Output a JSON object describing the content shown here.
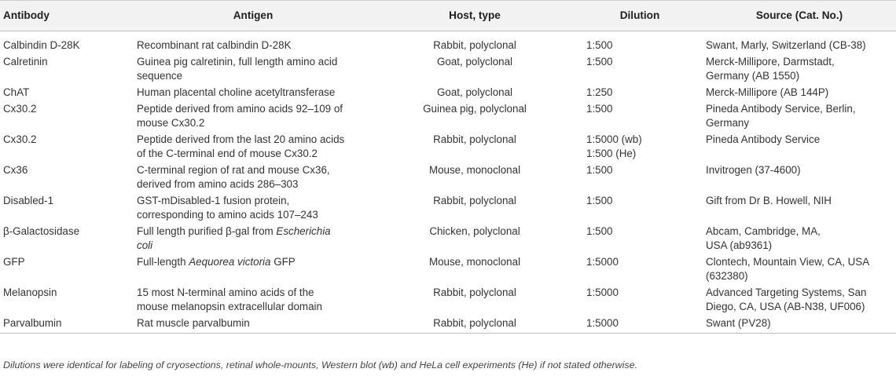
{
  "table": {
    "headers": [
      "Antibody",
      "Antigen",
      "Host, type",
      "Dilution",
      "Source (Cat. No.)"
    ],
    "rows": [
      {
        "antibody": [
          "Calbindin D-28K"
        ],
        "antigen": [
          [
            {
              "t": "Recombinant rat calbindin D-28K"
            }
          ]
        ],
        "host": [
          "Rabbit, polyclonal"
        ],
        "dilution": [
          "1:500"
        ],
        "source": [
          "Swant, Marly, Switzerland (CB-38)"
        ]
      },
      {
        "antibody": [
          "Calretinin"
        ],
        "antigen": [
          [
            {
              "t": "Guinea pig calretinin, full length amino acid"
            }
          ],
          [
            {
              "t": "sequence"
            }
          ]
        ],
        "host": [
          "Goat, polyclonal"
        ],
        "dilution": [
          "1:500"
        ],
        "source": [
          "Merck-Millipore, Darmstadt,",
          "Germany (AB 1550)"
        ]
      },
      {
        "antibody": [
          "ChAT"
        ],
        "antigen": [
          [
            {
              "t": "Human placental choline acetyltransferase"
            }
          ]
        ],
        "host": [
          "Goat, polyclonal"
        ],
        "dilution": [
          "1:250"
        ],
        "source": [
          "Merck-Millipore (AB 144P)"
        ]
      },
      {
        "antibody": [
          "Cx30.2"
        ],
        "antigen": [
          [
            {
              "t": "Peptide derived from amino acids 92–109 of"
            }
          ],
          [
            {
              "t": "mouse Cx30.2"
            }
          ]
        ],
        "host": [
          "Guinea pig, polyclonal"
        ],
        "dilution": [
          "1:500"
        ],
        "source": [
          "Pineda Antibody Service, Berlin,",
          "Germany"
        ]
      },
      {
        "antibody": [
          "Cx30.2"
        ],
        "antigen": [
          [
            {
              "t": "Peptide derived from the last 20 amino acids"
            }
          ],
          [
            {
              "t": "of the C-terminal end of mouse Cx30.2"
            }
          ]
        ],
        "host": [
          "Rabbit, polyclonal"
        ],
        "dilution": [
          "1:5000 (wb)",
          "1:500 (He)"
        ],
        "source": [
          "Pineda Antibody Service"
        ]
      },
      {
        "antibody": [
          "Cx36"
        ],
        "antigen": [
          [
            {
              "t": "C-terminal region of rat and mouse Cx36,"
            }
          ],
          [
            {
              "t": "derived from amino acids 286–303"
            }
          ]
        ],
        "host": [
          "Mouse, monoclonal"
        ],
        "dilution": [
          "1:500"
        ],
        "source": [
          "Invitrogen (37-4600)"
        ]
      },
      {
        "antibody": [
          "Disabled-1"
        ],
        "antigen": [
          [
            {
              "t": "GST-mDisabled-1 fusion protein,"
            }
          ],
          [
            {
              "t": "corresponding to amino acids 107–243"
            }
          ]
        ],
        "host": [
          "Rabbit, polyclonal"
        ],
        "dilution": [
          "1:500"
        ],
        "source": [
          "Gift from Dr B. Howell, NIH"
        ]
      },
      {
        "antibody": [
          "β-Galactosidase"
        ],
        "antigen": [
          [
            {
              "t": "Full length purified β-gal from "
            },
            {
              "t": "Escherichia",
              "i": true
            }
          ],
          [
            {
              "t": "coli",
              "i": true
            }
          ]
        ],
        "host": [
          "Chicken, polyclonal"
        ],
        "dilution": [
          "1:500"
        ],
        "source": [
          "Abcam, Cambridge, MA,",
          "USA (ab9361)"
        ]
      },
      {
        "antibody": [
          "GFP"
        ],
        "antigen": [
          [
            {
              "t": "Full-length "
            },
            {
              "t": "Aequorea victoria",
              "i": true
            },
            {
              "t": " GFP"
            }
          ]
        ],
        "host": [
          "Mouse, monoclonal"
        ],
        "dilution": [
          "1:5000"
        ],
        "source": [
          "Clontech, Mountain View, CA, USA",
          "(632380)"
        ]
      },
      {
        "antibody": [
          "Melanopsin"
        ],
        "antigen": [
          [
            {
              "t": "15 most N-terminal amino acids of the"
            }
          ],
          [
            {
              "t": "mouse melanopsin extracellular domain"
            }
          ]
        ],
        "host": [
          "Rabbit, polyclonal"
        ],
        "dilution": [
          "1:5000"
        ],
        "source": [
          "Advanced Targeting Systems, San",
          "Diego, CA, USA (AB-N38, UF006)"
        ]
      },
      {
        "antibody": [
          "Parvalbumin"
        ],
        "antigen": [
          [
            {
              "t": "Rat muscle parvalbumin"
            }
          ]
        ],
        "host": [
          "Rabbit, polyclonal"
        ],
        "dilution": [
          "1:5000"
        ],
        "source": [
          "Swant (PV28)"
        ]
      }
    ]
  },
  "footnote": "Dilutions were identical for labeling of cryosections, retinal whole-mounts, Western blot (wb) and HeLa cell experiments (He) if not stated otherwise."
}
